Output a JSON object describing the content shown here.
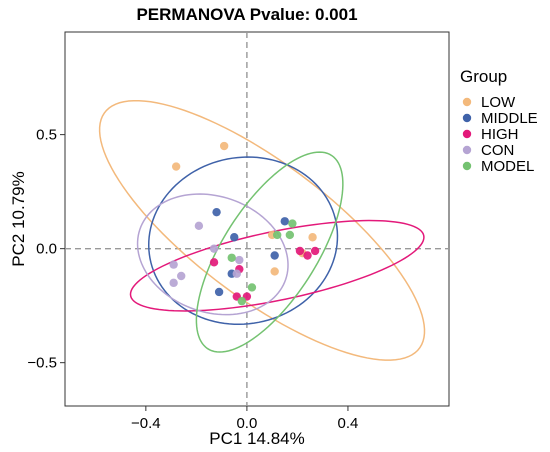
{
  "chart_data": {
    "type": "scatter",
    "title": "PERMANOVA Pvalue: 0.001",
    "xlabel": "PC1 14.84%",
    "ylabel": "PC2 10.79%",
    "xlim": [
      -0.72,
      0.8
    ],
    "ylim": [
      -0.69,
      0.95
    ],
    "xticks": [
      -0.4,
      0.0,
      0.4
    ],
    "xtick_labels": [
      "−0.4",
      "0.0",
      "0.4"
    ],
    "yticks": [
      -0.5,
      0.0,
      0.5
    ],
    "ytick_labels": [
      "−0.5",
      "0.0",
      "0.5"
    ],
    "grid": false,
    "reference_lines": {
      "x": 0,
      "y": 0,
      "style": "dashed"
    },
    "legend": {
      "title": "Group",
      "position": "right"
    },
    "series": [
      {
        "name": "LOW",
        "color": "#F3B97C",
        "points": [
          [
            -0.28,
            0.36
          ],
          [
            -0.09,
            0.45
          ],
          [
            0.1,
            0.06
          ],
          [
            0.26,
            0.05
          ],
          [
            0.11,
            -0.1
          ],
          [
            0.22,
            -0.02
          ]
        ],
        "ellipse": {
          "center": [
            0.06,
            0.08
          ],
          "semi_major": 0.81,
          "semi_minor": 0.285,
          "angle_deg": -40.5
        }
      },
      {
        "name": "MIDDLE",
        "color": "#3F62A9",
        "points": [
          [
            -0.12,
            0.16
          ],
          [
            -0.05,
            0.05
          ],
          [
            0.15,
            0.12
          ],
          [
            0.11,
            -0.03
          ],
          [
            -0.11,
            -0.19
          ],
          [
            -0.06,
            -0.11
          ]
        ],
        "ellipse": {
          "center": [
            -0.015,
            0.035
          ],
          "semi_major": 0.38,
          "semi_minor": 0.36,
          "angle_deg": 35
        }
      },
      {
        "name": "HIGH",
        "color": "#E3197A",
        "points": [
          [
            -0.13,
            -0.06
          ],
          [
            0.21,
            -0.01
          ],
          [
            0.24,
            -0.03
          ],
          [
            0.27,
            -0.01
          ],
          [
            -0.04,
            -0.21
          ],
          [
            0.0,
            -0.21
          ],
          [
            -0.03,
            -0.09
          ]
        ],
        "ellipse": {
          "center": [
            0.12,
            -0.075
          ],
          "semi_major": 0.595,
          "semi_minor": 0.15,
          "angle_deg": 13
        }
      },
      {
        "name": "CON",
        "color": "#B5A4D3",
        "points": [
          [
            -0.19,
            0.1
          ],
          [
            -0.13,
            0.0
          ],
          [
            -0.29,
            -0.07
          ],
          [
            -0.26,
            -0.12
          ],
          [
            -0.04,
            -0.11
          ],
          [
            -0.03,
            -0.05
          ],
          [
            -0.29,
            -0.15
          ]
        ],
        "ellipse": {
          "center": [
            -0.135,
            -0.025
          ],
          "semi_major": 0.31,
          "semi_minor": 0.25,
          "angle_deg": -28
        }
      },
      {
        "name": "MODEL",
        "color": "#74C271",
        "points": [
          [
            0.12,
            0.06
          ],
          [
            0.17,
            0.06
          ],
          [
            0.18,
            0.11
          ],
          [
            0.02,
            -0.17
          ],
          [
            -0.02,
            -0.23
          ],
          [
            -0.06,
            -0.04
          ]
        ],
        "ellipse": {
          "center": [
            0.09,
            -0.015
          ],
          "semi_major": 0.49,
          "semi_minor": 0.19,
          "angle_deg": 61
        }
      }
    ]
  }
}
